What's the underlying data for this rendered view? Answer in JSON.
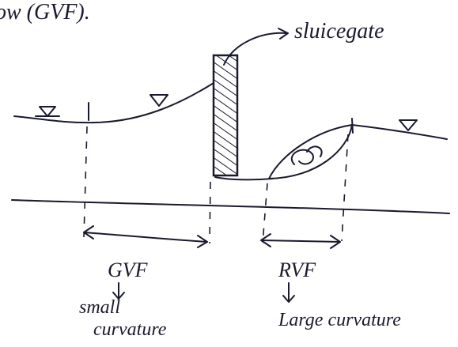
{
  "heading": "ow (GVF).",
  "labels": {
    "gate": "sluicegate",
    "gvf": "GVF",
    "gvf_note_1": "small",
    "gvf_note_2": "curvature",
    "rvf": "RVF",
    "rvf_note": "Large curvature"
  }
}
